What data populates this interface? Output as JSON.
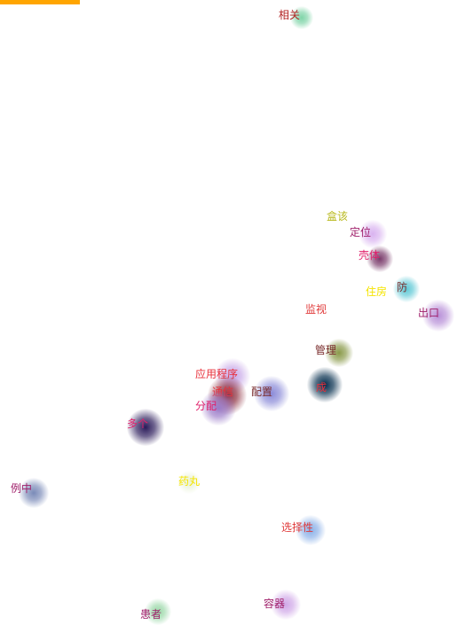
{
  "accent_color": "#FFA500",
  "terms": [
    {
      "label": "相关",
      "blob_color": "#7fd4a8",
      "text_color": "#b22222"
    },
    {
      "label": "盒该",
      "blob_color": "#ffffff",
      "text_color": "#b8b81a"
    },
    {
      "label": "定位",
      "blob_color": "#d9b3f0",
      "text_color": "#a0206b"
    },
    {
      "label": "壳体",
      "blob_color": "#7a3b6b",
      "text_color": "#e0206b"
    },
    {
      "label": "住房",
      "blob_color": "#ffffff",
      "text_color": "#f5e400"
    },
    {
      "label": "防",
      "blob_color": "#5fc9d6",
      "text_color": "#7a2c2c"
    },
    {
      "label": "出口",
      "blob_color": "#b890d8",
      "text_color": "#a0206b"
    },
    {
      "label": "监视",
      "blob_color": "#ffffff",
      "text_color": "#e03a3a"
    },
    {
      "label": "管理",
      "blob_color": "#8a9a4a",
      "text_color": "#7a2c2c"
    },
    {
      "label": "成",
      "blob_color": "#002a4a",
      "text_color": "#e8303a"
    },
    {
      "label": "应用程序",
      "blob_color": "#c8a8e8",
      "text_color": "#e8303a"
    },
    {
      "label": "通信",
      "blob_color": "#8a2a3a",
      "text_color": "#e8303a"
    },
    {
      "label": "配置",
      "blob_color": "#8a8ad8",
      "text_color": "#7a2c2c"
    },
    {
      "label": "分配",
      "blob_color": "#9a7ac8",
      "text_color": "#e0206b"
    },
    {
      "label": "多个",
      "blob_color": "#2a1a5a",
      "text_color": "#e0206b"
    },
    {
      "label": "例中",
      "blob_color": "#7a8ab8",
      "text_color": "#a0206b"
    },
    {
      "label": "药丸",
      "blob_color": "#eaf3da",
      "text_color": "#f5e400"
    },
    {
      "label": "选择性",
      "blob_color": "#8ab0e8",
      "text_color": "#e03a3a"
    },
    {
      "label": "患者",
      "blob_color": "#9ad8a8",
      "text_color": "#a0206b"
    },
    {
      "label": "容器",
      "blob_color": "#d0a8e8",
      "text_color": "#a0206b"
    }
  ]
}
